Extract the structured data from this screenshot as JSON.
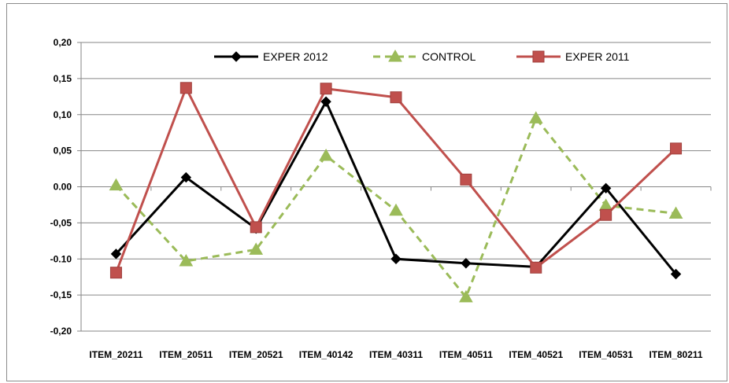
{
  "chart_data": {
    "type": "line",
    "title": "",
    "xlabel": "",
    "ylabel": "",
    "ylim": [
      -0.2,
      0.2
    ],
    "y_ticks": [
      0.2,
      0.15,
      0.1,
      0.05,
      0.0,
      -0.05,
      -0.1,
      -0.15,
      -0.2
    ],
    "y_tick_labels": [
      "0,20",
      "0,15",
      "0,10",
      "0,05",
      "0.00",
      "-0,05",
      "-0.10",
      "-0,15",
      "-0,20"
    ],
    "categories": [
      "ITEM_20211",
      "ITEM_20511",
      "ITEM_20521",
      "ITEM_40142",
      "ITEM_40311",
      "ITEM_40511",
      "ITEM_40521",
      "ITEM_40531",
      "ITEM_80211"
    ],
    "grid": true,
    "legend_position": "top",
    "series": [
      {
        "name": "EXPER 2012",
        "color": "#000000",
        "marker": "diamond",
        "line_style": "solid",
        "values": [
          -0.093,
          0.013,
          -0.058,
          0.118,
          -0.1,
          -0.106,
          -0.111,
          -0.002,
          -0.121
        ]
      },
      {
        "name": "CONTROL",
        "color": "#9bbb59",
        "marker": "triangle",
        "line_style": "dashed",
        "values": [
          0.002,
          -0.103,
          -0.087,
          0.043,
          -0.033,
          -0.153,
          0.095,
          -0.026,
          -0.037
        ]
      },
      {
        "name": "EXPER 2011",
        "color": "#c0504d",
        "marker": "square",
        "line_style": "solid",
        "values": [
          -0.119,
          0.137,
          -0.056,
          0.136,
          0.124,
          0.01,
          -0.112,
          -0.039,
          0.053
        ]
      }
    ]
  }
}
